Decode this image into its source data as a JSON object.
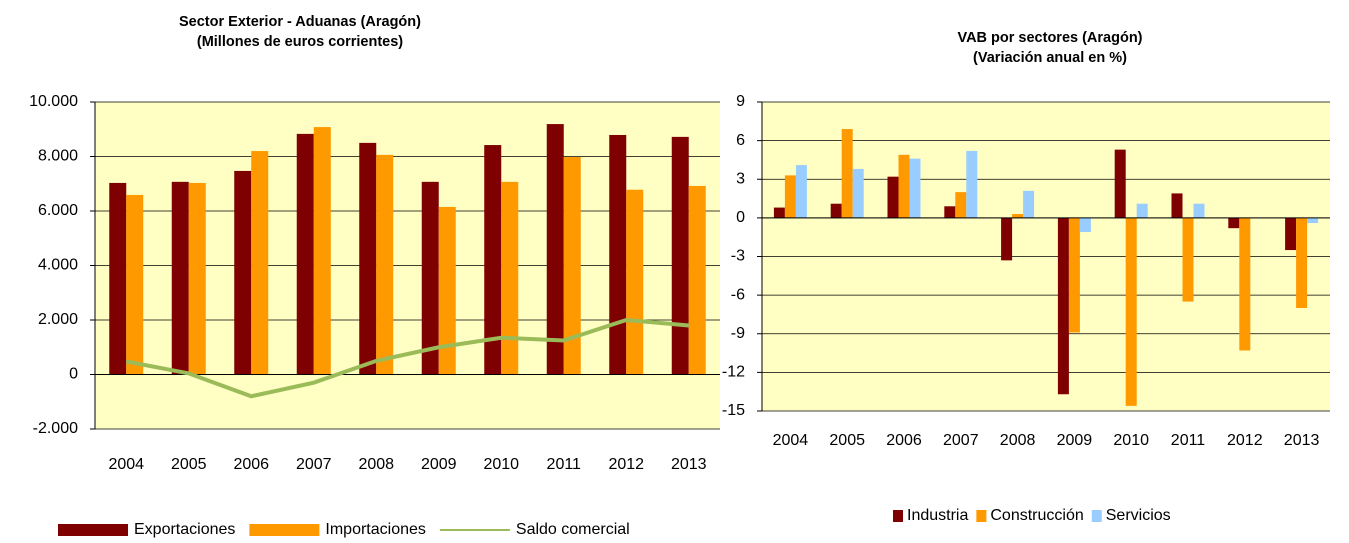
{
  "chart_data": [
    {
      "type": "bar",
      "title": "Sector Exterior - Aduanas (Aragón)",
      "subtitle": "(Millones de euros corrientes)",
      "categories": [
        "2004",
        "2005",
        "2006",
        "2007",
        "2008",
        "2009",
        "2010",
        "2011",
        "2012",
        "2013"
      ],
      "series": [
        {
          "name": "Exportaciones",
          "color": "#7f0000",
          "values": [
            7030,
            7070,
            7470,
            8830,
            8500,
            7070,
            8420,
            9190,
            8790,
            8720
          ]
        },
        {
          "name": "Importaciones",
          "color": "#ff9900",
          "values": [
            6590,
            7030,
            8200,
            9080,
            8060,
            6150,
            7070,
            7980,
            6780,
            6920
          ]
        },
        {
          "name": "Saldo comercial",
          "color": "#9bbb59",
          "type": "line",
          "values": [
            480,
            40,
            -800,
            -300,
            500,
            1000,
            1350,
            1250,
            2000,
            1800
          ]
        }
      ],
      "ylim": [
        -2000,
        10000
      ],
      "yticks": [
        {
          "value": -2000,
          "label": "-2.000"
        },
        0,
        {
          "value": 2000,
          "label": "2.000"
        },
        {
          "value": 4000,
          "label": "4.000"
        },
        {
          "value": 6000,
          "label": "6.000"
        },
        {
          "value": 8000,
          "label": "8.000"
        },
        {
          "value": 10000,
          "label": "10.000"
        }
      ],
      "grid": true,
      "legend": "bottom"
    },
    {
      "type": "bar",
      "title": "VAB por sectores (Aragón)",
      "subtitle": "(Variación anual en %)",
      "categories": [
        "2004",
        "2005",
        "2006",
        "2007",
        "2008",
        "2009",
        "2010",
        "2011",
        "2012",
        "2013"
      ],
      "series": [
        {
          "name": "Industria",
          "color": "#7f0000",
          "values": [
            0.8,
            1.1,
            3.2,
            0.9,
            -3.3,
            -13.7,
            5.3,
            1.9,
            -0.8,
            -2.5
          ]
        },
        {
          "name": "Construcción",
          "color": "#ff9900",
          "values": [
            3.3,
            6.9,
            4.9,
            2.0,
            0.3,
            -8.9,
            -14.6,
            -6.5,
            -10.3,
            -7.0
          ]
        },
        {
          "name": "Servicios",
          "color": "#99ccff",
          "values": [
            4.1,
            3.8,
            4.6,
            5.2,
            2.1,
            -1.1,
            1.1,
            1.1,
            0,
            -0.4
          ]
        }
      ],
      "ylim": [
        -15,
        9
      ],
      "yticks": [
        -15,
        -12,
        -9,
        -6,
        -3,
        0,
        3,
        6,
        9
      ],
      "grid": true,
      "legend": "bottom"
    }
  ]
}
